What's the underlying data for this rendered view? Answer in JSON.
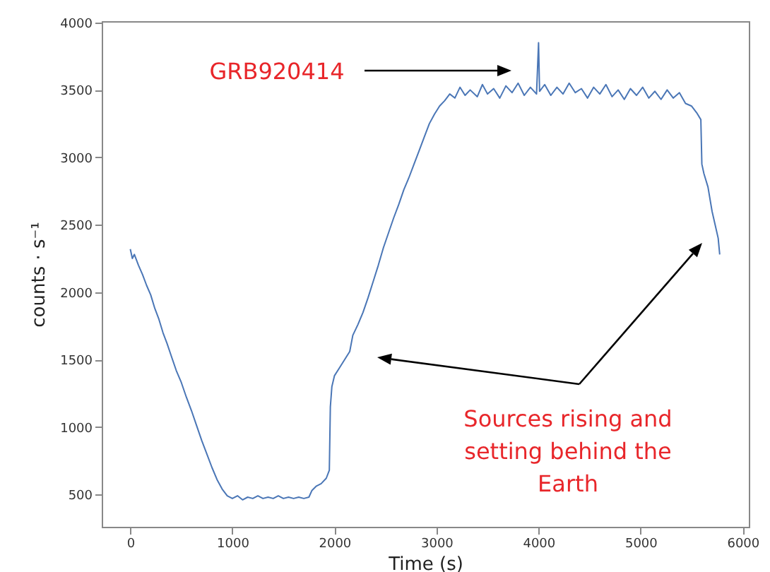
{
  "chart_data": {
    "type": "line",
    "xlabel": "Time (s)",
    "ylabel": "counts · s⁻¹",
    "xlim": [
      -280,
      6060
    ],
    "ylim": [
      260,
      4010
    ],
    "xticks": [
      0,
      1000,
      2000,
      3000,
      4000,
      5000,
      6000
    ],
    "yticks": [
      500,
      1000,
      1500,
      2000,
      2500,
      3000,
      3500,
      4000
    ],
    "grid": false,
    "annotations": [
      "GRB920414",
      "Sources rising and setting behind the Earth"
    ],
    "x": [
      0,
      20,
      40,
      80,
      120,
      160,
      200,
      240,
      280,
      320,
      360,
      400,
      450,
      500,
      550,
      600,
      650,
      700,
      750,
      800,
      850,
      900,
      950,
      1000,
      1050,
      1100,
      1150,
      1200,
      1250,
      1300,
      1350,
      1400,
      1450,
      1500,
      1550,
      1600,
      1650,
      1700,
      1750,
      1780,
      1820,
      1870,
      1920,
      1950,
      1960,
      1975,
      2000,
      2050,
      2100,
      2150,
      2180,
      2230,
      2280,
      2330,
      2380,
      2430,
      2480,
      2530,
      2580,
      2630,
      2680,
      2730,
      2780,
      2830,
      2880,
      2930,
      2980,
      3030,
      3080,
      3130,
      3180,
      3230,
      3280,
      3330,
      3400,
      3450,
      3500,
      3560,
      3620,
      3680,
      3740,
      3800,
      3860,
      3920,
      3980,
      4000,
      4010,
      4060,
      4120,
      4180,
      4240,
      4300,
      4360,
      4420,
      4480,
      4540,
      4600,
      4660,
      4720,
      4780,
      4840,
      4900,
      4960,
      5020,
      5080,
      5140,
      5200,
      5260,
      5320,
      5380,
      5440,
      5500,
      5550,
      5590,
      5600,
      5620,
      5660,
      5700,
      5730,
      5760,
      5775
    ],
    "series": [
      {
        "color": "#4a76b6",
        "values": [
          2320,
          2250,
          2280,
          2200,
          2130,
          2050,
          1980,
          1880,
          1800,
          1700,
          1620,
          1530,
          1420,
          1330,
          1220,
          1120,
          1010,
          900,
          800,
          700,
          610,
          540,
          490,
          470,
          490,
          460,
          480,
          470,
          490,
          470,
          480,
          470,
          490,
          470,
          480,
          470,
          480,
          470,
          480,
          530,
          560,
          580,
          620,
          680,
          1150,
          1300,
          1380,
          1440,
          1500,
          1560,
          1680,
          1760,
          1850,
          1960,
          2080,
          2200,
          2330,
          2440,
          2550,
          2650,
          2760,
          2850,
          2950,
          3050,
          3150,
          3250,
          3320,
          3380,
          3420,
          3470,
          3440,
          3520,
          3460,
          3500,
          3450,
          3540,
          3470,
          3510,
          3440,
          3530,
          3480,
          3550,
          3460,
          3520,
          3470,
          3850,
          3490,
          3540,
          3460,
          3520,
          3470,
          3550,
          3480,
          3510,
          3440,
          3520,
          3470,
          3540,
          3450,
          3500,
          3430,
          3510,
          3460,
          3520,
          3440,
          3490,
          3430,
          3500,
          3440,
          3480,
          3400,
          3380,
          3330,
          3280,
          2950,
          2880,
          2780,
          2600,
          2500,
          2400,
          2280
        ]
      }
    ]
  }
}
